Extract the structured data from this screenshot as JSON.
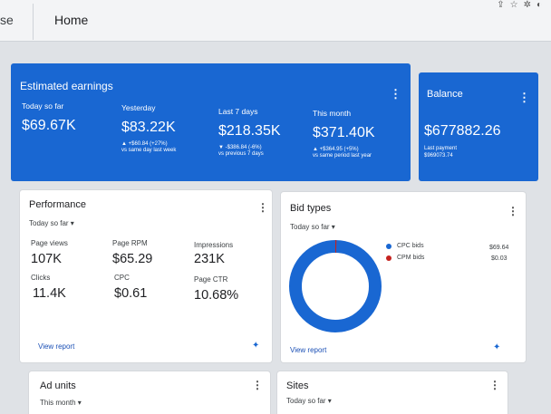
{
  "topbar": {
    "app_fragment": "se",
    "page_title": "Home",
    "icons": [
      "share-icon",
      "star-icon",
      "extension-icon",
      "edge-icon"
    ]
  },
  "colors": {
    "card_blue": "#1967d2",
    "cpc_dot": "#1967d2",
    "cpm_dot": "#c5221f",
    "link": "#1a4fb5"
  },
  "estimated": {
    "title": "Estimated earnings",
    "stats": [
      {
        "label": "Today so far",
        "value": "$69.67K",
        "delta": "",
        "compare": ""
      },
      {
        "label": "Yesterday",
        "value": "$83.22K",
        "delta": "▲ +$60.84 (+27%)",
        "compare": "vs same day last week"
      },
      {
        "label": "Last 7 days",
        "value": "$218.35K",
        "delta": "▼ -$386.84 (-6%)",
        "compare": "vs previous 7 days"
      },
      {
        "label": "This month",
        "value": "$371.40K",
        "delta": "▲ +$364.95 (+5%)",
        "compare": "vs same period last year"
      }
    ]
  },
  "balance": {
    "title": "Balance",
    "value": "$677882.26",
    "last_payment_label": "Last payment",
    "last_payment_value": "$969073.74"
  },
  "performance": {
    "title": "Performance",
    "period": "Today so far ▾",
    "metrics": [
      {
        "label": "Page views",
        "value": "107K"
      },
      {
        "label": "Page RPM",
        "value": "$65.29"
      },
      {
        "label": "Impressions",
        "value": "231K"
      },
      {
        "label": "Clicks",
        "value": "11.4K"
      },
      {
        "label": "CPC",
        "value": "$0.61"
      },
      {
        "label": "Page CTR",
        "value": "10.68%"
      }
    ],
    "link": "View report"
  },
  "bid_types": {
    "title": "Bid types",
    "period": "Today so far ▾",
    "items": [
      {
        "label": "CPC bids",
        "value": "$69.64"
      },
      {
        "label": "CPM bids",
        "value": "$0.03"
      }
    ],
    "cpc_share": 0.9996,
    "link": "View report"
  },
  "ad_units": {
    "title": "Ad units",
    "period": "This month ▾"
  },
  "sites": {
    "title": "Sites",
    "period": "Today so far ▾"
  }
}
